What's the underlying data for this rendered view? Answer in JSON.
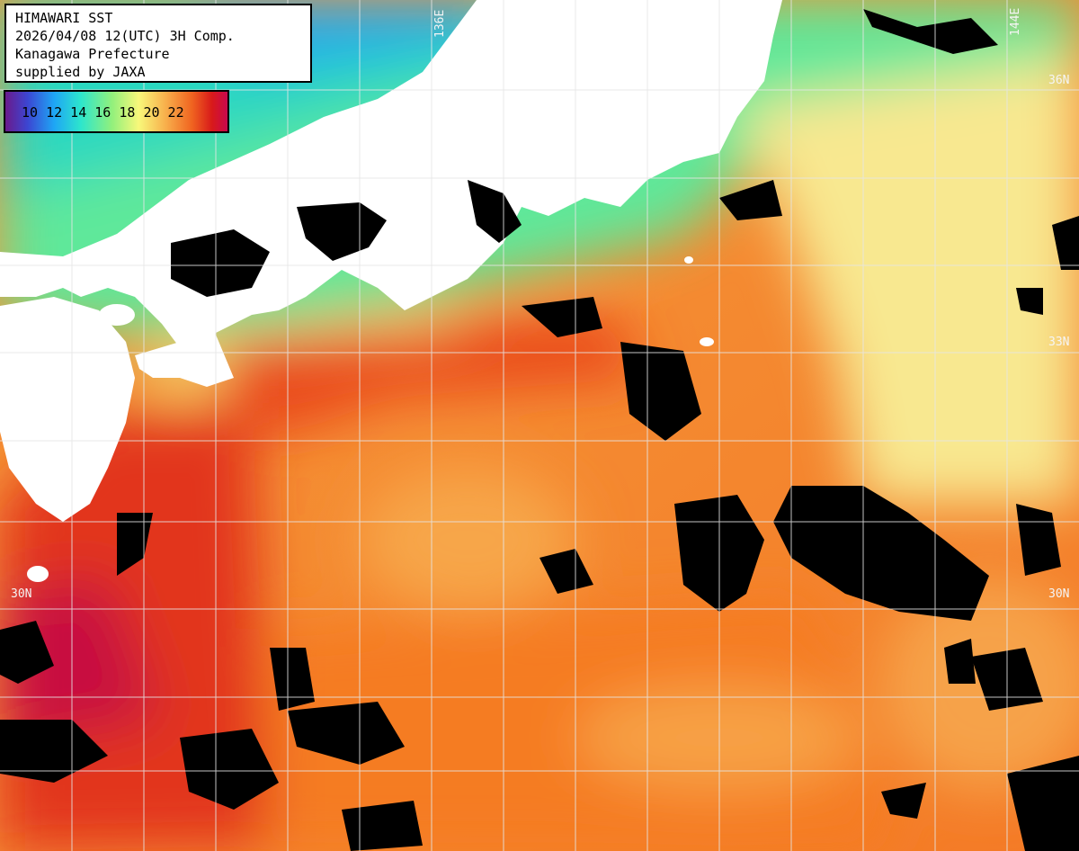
{
  "info": {
    "line1": "HIMAWARI SST",
    "line2": "2026/04/08 12(UTC) 3H Comp.",
    "line3": "Kanagawa Prefecture",
    "line4": "supplied by JAXA"
  },
  "legend": {
    "labels": "10 12 14 16 18 20 22",
    "colors": [
      "#5a1e8c",
      "#4b3cc8",
      "#28a0f0",
      "#2de0d0",
      "#7cf07c",
      "#f6f67a",
      "#f8b050",
      "#f26c22",
      "#d81e1e",
      "#c80a50"
    ]
  },
  "grid_labels": {
    "lon_136": "136E",
    "lon_144": "144E",
    "lat_36": "36N",
    "lat_33": "33N",
    "lat_30_left": "30N",
    "lat_30_right": "30N"
  },
  "colors": {
    "land": "#ffffff",
    "cloud_mask": "#000000",
    "grid": "#e6e6e6"
  }
}
